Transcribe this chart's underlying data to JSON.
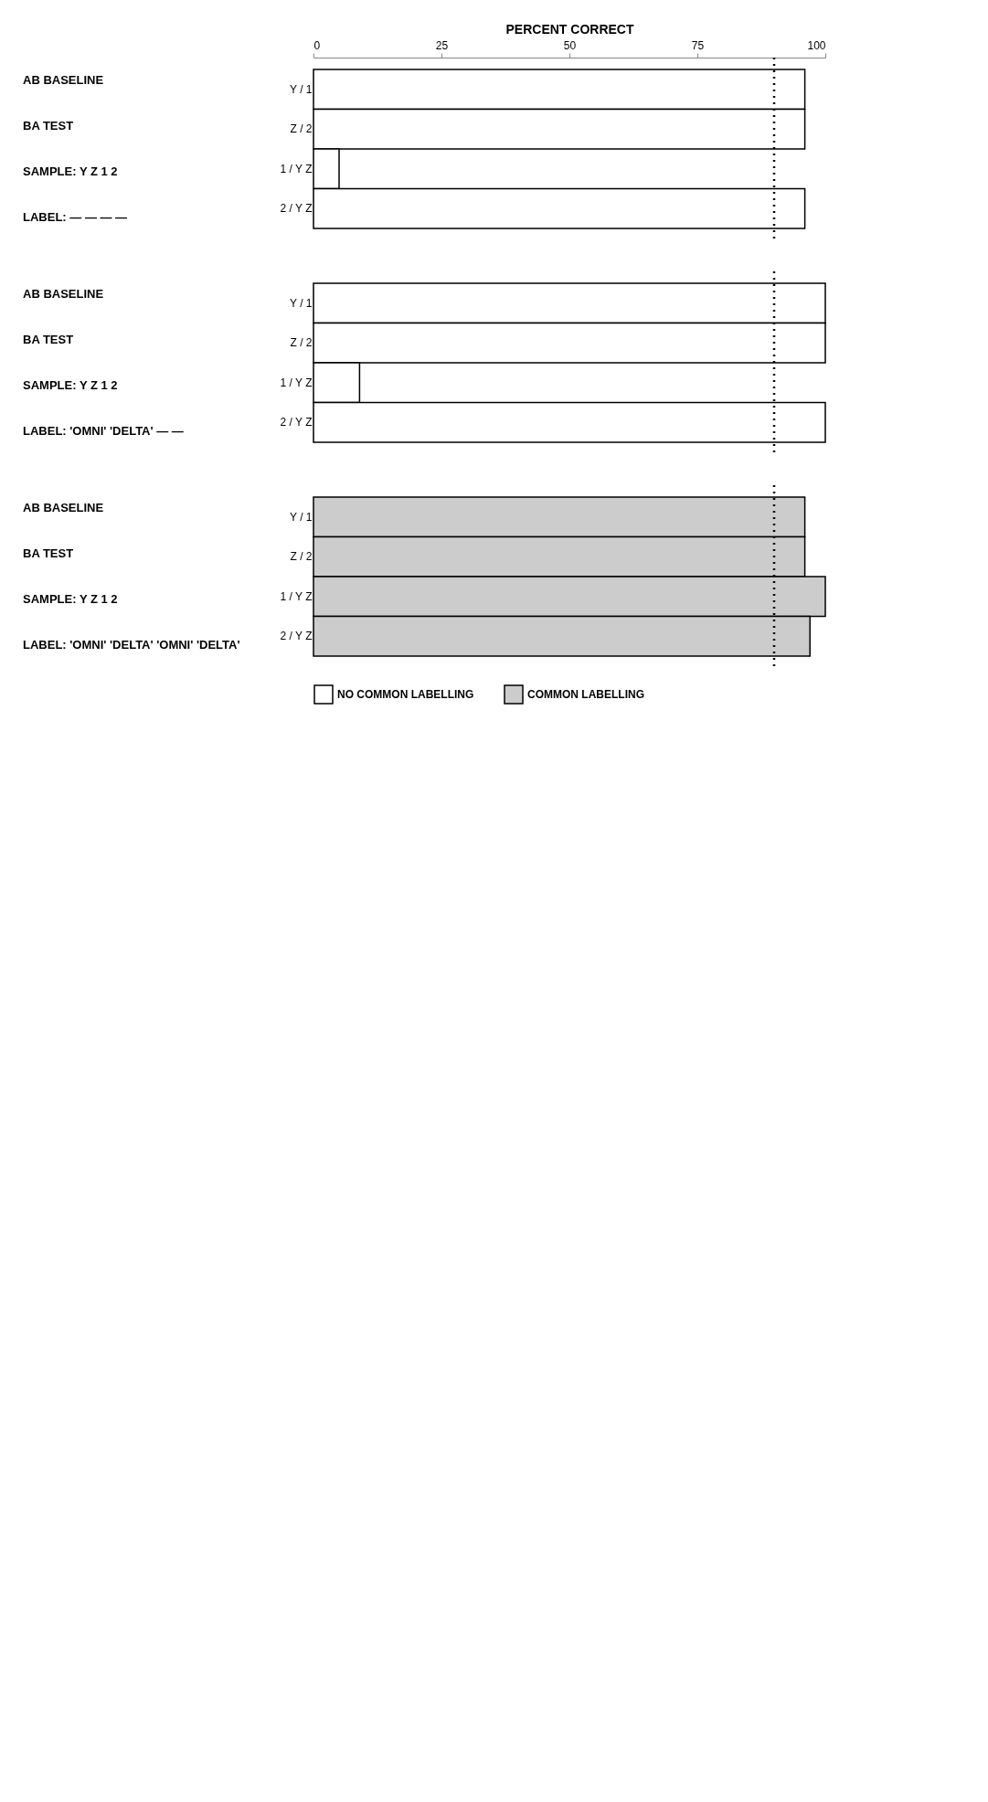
{
  "chart_data": [
    {
      "type": "bar",
      "orientation": "horizontal",
      "xlabel": "PERCENT CORRECT",
      "categories": [
        "Y / 1",
        "Z / 2",
        "1 / Y Z",
        "2 / Y Z"
      ],
      "series": [
        {
          "color": "#ffffff",
          "values": [
            96,
            96,
            5,
            96
          ]
        }
      ],
      "xlim": [
        0,
        100
      ],
      "xticks": [
        0,
        25,
        50,
        75,
        100
      ],
      "ref_lines": [
        {
          "axis": "x",
          "value": 90,
          "color": "#000000",
          "line_style": "dotted"
        }
      ],
      "annotations": [
        "AB BASELINE",
        "BA TEST",
        "SAMPLE: Y  Z  1  2",
        "LABEL: —  —  —  —"
      ]
    },
    {
      "type": "bar",
      "orientation": "horizontal",
      "categories": [
        "Y / 1",
        "Z / 2",
        "1 / Y Z",
        "2 / Y Z"
      ],
      "series": [
        {
          "color": "#ffffff",
          "values": [
            100,
            100,
            9,
            100
          ]
        }
      ],
      "xlim": [
        0,
        100
      ],
      "xticks": [
        0,
        25,
        50,
        75,
        100
      ],
      "tick_labels": "y",
      "ref_lines": [
        {
          "axis": "x",
          "value": 90,
          "color": "#000000",
          "line_style": "dotted"
        }
      ],
      "annotations": [
        "AB BASELINE",
        "BA TEST",
        "SAMPLE: Y  Z  1  2",
        "LABEL: 'OMNI'  'DELTA'  —  —"
      ]
    },
    {
      "type": "bar",
      "orientation": "horizontal",
      "categories": [
        "Y / 1",
        "Z / 2",
        "1 / Y Z",
        "2 / Y Z"
      ],
      "series": [
        {
          "name": "NO COMMON LABELLING",
          "color": "#ffffff",
          "values": [
            null,
            null,
            null,
            null
          ]
        },
        {
          "name": "COMMON LABELLING",
          "color": "#cccccc",
          "values": [
            96,
            96,
            100,
            97
          ]
        }
      ],
      "xlim": [
        0,
        100
      ],
      "xticks": [
        0,
        25,
        50,
        75,
        100
      ],
      "tick_labels": "y",
      "legend": "bottom",
      "ref_lines": [
        {
          "axis": "x",
          "value": 90,
          "color": "#000000",
          "line_style": "dotted"
        }
      ],
      "annotations": [
        "AB BASELINE",
        "BA TEST",
        "SAMPLE: Y  Z  1  2",
        "LABEL: 'OMNI'  'DELTA'  'OMNI'  'DELTA'"
      ]
    }
  ]
}
